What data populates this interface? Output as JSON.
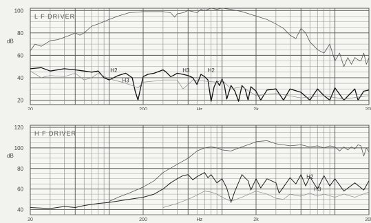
{
  "chart_data": [
    {
      "type": "line",
      "title": "L F DRIVER",
      "ylabel": "dB",
      "xlabel": "Hz",
      "xscale": "log",
      "xlim": [
        20,
        20000
      ],
      "ylim": [
        16,
        102
      ],
      "y_ticks": [
        20,
        40,
        60,
        80,
        100
      ],
      "x_tick_labels": [
        {
          "value": 20,
          "text": "20"
        },
        {
          "value": 200,
          "text": "200"
        },
        {
          "value": 630,
          "text": "Hz"
        },
        {
          "value": 2000,
          "text": "2k"
        },
        {
          "value": 20000,
          "text": "20k"
        }
      ],
      "grid": true,
      "series": [
        {
          "id": "fundamental",
          "color": "#555555",
          "width": 0.8,
          "points": [
            [
              20,
              64
            ],
            [
              22,
              70
            ],
            [
              25,
              68
            ],
            [
              30,
              73
            ],
            [
              35,
              74
            ],
            [
              40,
              76
            ],
            [
              45,
              78
            ],
            [
              50,
              80
            ],
            [
              55,
              78
            ],
            [
              60,
              80
            ],
            [
              70,
              86
            ],
            [
              80,
              88
            ],
            [
              100,
              92
            ],
            [
              120,
              95
            ],
            [
              150,
              98
            ],
            [
              200,
              99
            ],
            [
              250,
              99
            ],
            [
              300,
              99
            ],
            [
              350,
              98
            ],
            [
              380,
              94
            ],
            [
              400,
              97
            ],
            [
              450,
              98
            ],
            [
              500,
              100
            ],
            [
              550,
              99
            ],
            [
              600,
              98
            ],
            [
              650,
              101
            ],
            [
              700,
              100
            ],
            [
              800,
              102
            ],
            [
              900,
              101
            ],
            [
              1000,
              102
            ],
            [
              1200,
              101
            ],
            [
              1500,
              99
            ],
            [
              2000,
              95
            ],
            [
              2500,
              92
            ],
            [
              3000,
              88
            ],
            [
              3500,
              84
            ],
            [
              4000,
              78
            ],
            [
              4500,
              75
            ],
            [
              5000,
              84
            ],
            [
              5500,
              80
            ],
            [
              6000,
              72
            ],
            [
              7000,
              65
            ],
            [
              8000,
              62
            ],
            [
              9000,
              70
            ],
            [
              10000,
              55
            ],
            [
              11000,
              62
            ],
            [
              12000,
              50
            ],
            [
              13000,
              58
            ],
            [
              14000,
              52
            ],
            [
              15000,
              58
            ],
            [
              16000,
              56
            ],
            [
              17000,
              55
            ],
            [
              18000,
              62
            ],
            [
              19000,
              52
            ],
            [
              20000,
              58
            ]
          ]
        },
        {
          "id": "thick",
          "color": "#111111",
          "width": 1.3,
          "points": [
            [
              20,
              48
            ],
            [
              25,
              49
            ],
            [
              30,
              46
            ],
            [
              40,
              48
            ],
            [
              50,
              47
            ],
            [
              60,
              46
            ],
            [
              70,
              45
            ],
            [
              80,
              46
            ],
            [
              90,
              40
            ],
            [
              100,
              38
            ],
            [
              120,
              42
            ],
            [
              140,
              44
            ],
            [
              160,
              40
            ],
            [
              170,
              28
            ],
            [
              180,
              20
            ],
            [
              190,
              31
            ],
            [
              200,
              41
            ],
            [
              220,
              43
            ],
            [
              250,
              44
            ],
            [
              300,
              47
            ],
            [
              320,
              45
            ],
            [
              350,
              41
            ],
            [
              370,
              42
            ],
            [
              400,
              44
            ],
            [
              450,
              43
            ],
            [
              500,
              42
            ],
            [
              550,
              40
            ],
            [
              600,
              34
            ],
            [
              650,
              43
            ],
            [
              700,
              41
            ],
            [
              750,
              38
            ],
            [
              800,
              19
            ],
            [
              850,
              32
            ],
            [
              900,
              37
            ],
            [
              950,
              33
            ],
            [
              1000,
              39
            ],
            [
              1050,
              33
            ],
            [
              1100,
              21
            ],
            [
              1200,
              33
            ],
            [
              1300,
              28
            ],
            [
              1400,
              19
            ],
            [
              1500,
              33
            ],
            [
              1600,
              30
            ],
            [
              1700,
              20
            ],
            [
              1800,
              32
            ],
            [
              2000,
              28
            ],
            [
              2200,
              20
            ],
            [
              2500,
              29
            ],
            [
              3000,
              30
            ],
            [
              3500,
              20
            ],
            [
              4000,
              30
            ],
            [
              5000,
              27
            ],
            [
              6000,
              20
            ],
            [
              7000,
              30
            ],
            [
              8000,
              24
            ],
            [
              9000,
              20
            ],
            [
              10000,
              31
            ],
            [
              12000,
              20
            ],
            [
              15000,
              30
            ],
            [
              16000,
              20
            ],
            [
              18000,
              28
            ],
            [
              20000,
              29
            ]
          ]
        },
        {
          "id": "harmonic",
          "color": "#888888",
          "width": 0.7,
          "points": [
            [
              20,
              46
            ],
            [
              25,
              40
            ],
            [
              30,
              42
            ],
            [
              40,
              41
            ],
            [
              50,
              44
            ],
            [
              60,
              38
            ],
            [
              70,
              40
            ],
            [
              80,
              44
            ],
            [
              100,
              39
            ],
            [
              130,
              36
            ],
            [
              150,
              34
            ],
            [
              180,
              31
            ],
            [
              200,
              36
            ],
            [
              250,
              37
            ],
            [
              300,
              38
            ],
            [
              400,
              38
            ],
            [
              450,
              30
            ],
            [
              500,
              34
            ],
            [
              550,
              38
            ],
            [
              700,
              37
            ],
            [
              900,
              36
            ],
            [
              1000,
              38
            ],
            [
              1200,
              30
            ],
            [
              1500,
              32
            ],
            [
              2000,
              24
            ],
            [
              3000,
              26
            ],
            [
              5000,
              22
            ],
            [
              8000,
              24
            ],
            [
              12000,
              21
            ],
            [
              20000,
              24
            ]
          ]
        }
      ],
      "annotations": [
        {
          "text": "H2",
          "x": 110,
          "y": 45
        },
        {
          "text": "H3",
          "x": 140,
          "y": 36
        },
        {
          "text": "H3",
          "x": 480,
          "y": 45
        },
        {
          "text": "H2",
          "x": 800,
          "y": 45
        }
      ]
    },
    {
      "type": "line",
      "title": "H F DRIVER",
      "ylabel": "dB",
      "xlabel": "Hz",
      "xscale": "log",
      "xlim": [
        20,
        20000
      ],
      "ylim": [
        35,
        122
      ],
      "y_ticks": [
        40,
        60,
        80,
        100,
        120
      ],
      "y_tick_labels": [
        "40",
        "60",
        "80",
        "100",
        "120"
      ],
      "x_tick_labels": [
        {
          "value": 20,
          "text": "20"
        },
        {
          "value": 200,
          "text": "200"
        },
        {
          "value": 630,
          "text": "Hz"
        },
        {
          "value": 2000,
          "text": "2k"
        },
        {
          "value": 20000,
          "text": "20k"
        }
      ],
      "grid": true,
      "series": [
        {
          "id": "fundamental",
          "color": "#555555",
          "width": 0.8,
          "points": [
            [
              100,
              48
            ],
            [
              120,
              52
            ],
            [
              150,
              56
            ],
            [
              200,
              62
            ],
            [
              250,
              68
            ],
            [
              300,
              76
            ],
            [
              400,
              84
            ],
            [
              500,
              90
            ],
            [
              600,
              97
            ],
            [
              700,
              100
            ],
            [
              800,
              101
            ],
            [
              900,
              100
            ],
            [
              1000,
              98
            ],
            [
              1200,
              97
            ],
            [
              1500,
              101
            ],
            [
              1800,
              104
            ],
            [
              2000,
              106
            ],
            [
              2500,
              107
            ],
            [
              3000,
              104
            ],
            [
              3500,
              103
            ],
            [
              4000,
              102
            ],
            [
              5000,
              103
            ],
            [
              6000,
              101
            ],
            [
              7000,
              102
            ],
            [
              8000,
              100
            ],
            [
              9000,
              102
            ],
            [
              10000,
              101
            ],
            [
              11000,
              97
            ],
            [
              12000,
              101
            ],
            [
              13000,
              98
            ],
            [
              14000,
              101
            ],
            [
              15000,
              99
            ],
            [
              16000,
              103
            ],
            [
              17000,
              102
            ],
            [
              18000,
              92
            ],
            [
              19000,
              100
            ],
            [
              20000,
              96
            ]
          ]
        },
        {
          "id": "h2",
          "color": "#222222",
          "width": 1.0,
          "points": [
            [
              20,
              42
            ],
            [
              30,
              41
            ],
            [
              40,
              43
            ],
            [
              50,
              42
            ],
            [
              60,
              44
            ],
            [
              80,
              46
            ],
            [
              100,
              47
            ],
            [
              150,
              50
            ],
            [
              200,
              52
            ],
            [
              250,
              55
            ],
            [
              300,
              60
            ],
            [
              350,
              66
            ],
            [
              400,
              70
            ],
            [
              450,
              73
            ],
            [
              500,
              74
            ],
            [
              550,
              69
            ],
            [
              600,
              72
            ],
            [
              700,
              76
            ],
            [
              750,
              71
            ],
            [
              800,
              74
            ],
            [
              900,
              66
            ],
            [
              1000,
              70
            ],
            [
              1100,
              61
            ],
            [
              1200,
              47
            ],
            [
              1300,
              58
            ],
            [
              1500,
              74
            ],
            [
              1700,
              68
            ],
            [
              1800,
              59
            ],
            [
              2000,
              70
            ],
            [
              2200,
              61
            ],
            [
              2500,
              70
            ],
            [
              3000,
              66
            ],
            [
              3200,
              56
            ],
            [
              3500,
              62
            ],
            [
              4000,
              71
            ],
            [
              4500,
              65
            ],
            [
              5000,
              74
            ],
            [
              5500,
              63
            ],
            [
              6000,
              72
            ],
            [
              7000,
              60
            ],
            [
              8000,
              73
            ],
            [
              9000,
              63
            ],
            [
              10000,
              70
            ],
            [
              12000,
              58
            ],
            [
              15000,
              66
            ],
            [
              18000,
              59
            ],
            [
              20000,
              68
            ]
          ]
        },
        {
          "id": "h3",
          "color": "#888888",
          "width": 0.7,
          "points": [
            [
              300,
              42
            ],
            [
              400,
              46
            ],
            [
              500,
              50
            ],
            [
              600,
              54
            ],
            [
              700,
              58
            ],
            [
              800,
              57
            ],
            [
              900,
              55
            ],
            [
              1000,
              52
            ],
            [
              1200,
              48
            ],
            [
              1500,
              52
            ],
            [
              2000,
              58
            ],
            [
              2500,
              55
            ],
            [
              3000,
              51
            ],
            [
              3500,
              50
            ],
            [
              4000,
              55
            ],
            [
              5000,
              53
            ],
            [
              6000,
              56
            ],
            [
              7000,
              53
            ],
            [
              8000,
              55
            ],
            [
              10000,
              52
            ],
            [
              12000,
              55
            ],
            [
              15000,
              52
            ],
            [
              20000,
              57
            ]
          ]
        }
      ],
      "annotations": [
        {
          "text": "H2",
          "x": 6000,
          "y": 70
        },
        {
          "text": "H3",
          "x": 7000,
          "y": 58
        }
      ]
    }
  ]
}
